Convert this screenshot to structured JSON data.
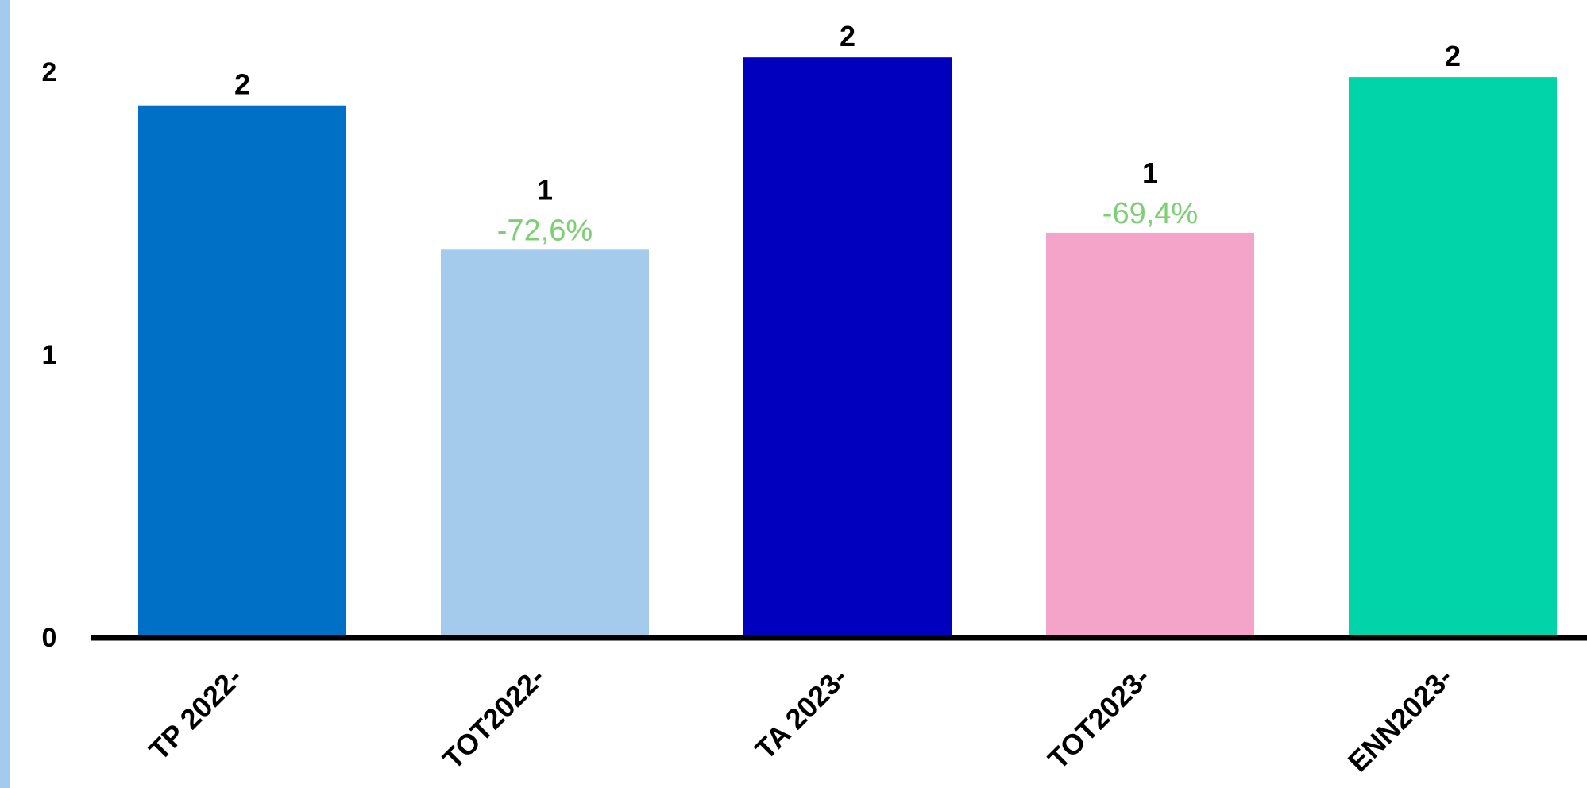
{
  "chart_data": {
    "type": "bar",
    "categories": [
      "TP 2022-",
      "TOT2022-",
      "TA 2023-",
      "TOT2023-",
      "ENN2023-"
    ],
    "values": [
      1.88,
      1.37,
      2.05,
      1.43,
      1.98
    ],
    "value_labels": [
      "2",
      "1",
      "2",
      "1",
      "2"
    ],
    "change_labels": [
      "",
      "-72,6%",
      "",
      "-69,4%",
      ""
    ],
    "bar_colors": [
      "#0070c6",
      "#a4cbeb",
      "#0000be",
      "#f4a4c8",
      "#00d4a8"
    ],
    "change_color": "#7dcf74",
    "yticks": [
      0,
      1,
      2
    ],
    "ylim": [
      0,
      2.15
    ],
    "title": "",
    "xlabel": "",
    "ylabel": "",
    "grid": false,
    "legend": "none"
  }
}
